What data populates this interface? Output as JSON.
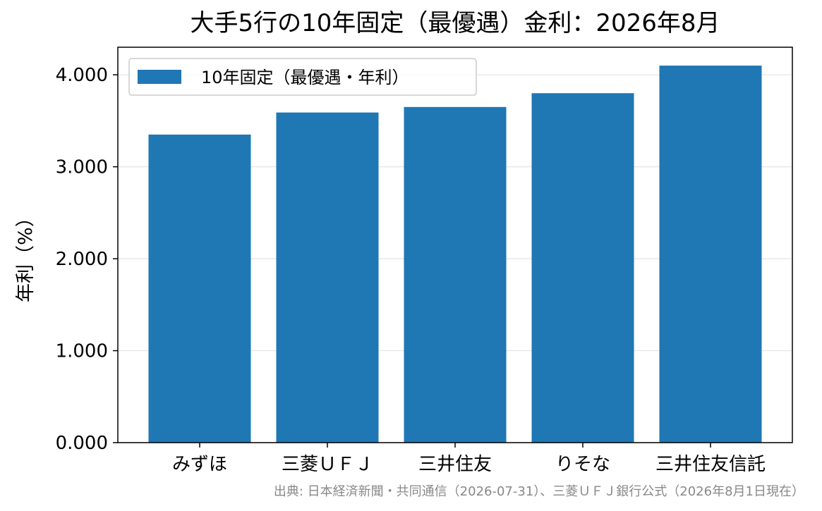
{
  "chart_data": {
    "type": "bar",
    "title": "大手5行の10年固定（最優遇）金利：2026年8月",
    "xlabel": "",
    "ylabel": "年利（%）",
    "categories": [
      "みずほ",
      "三菱ＵＦＪ",
      "三井住友",
      "りそな",
      "三井住友信託"
    ],
    "series": [
      {
        "name": "10年固定（最優遇・年利）",
        "values": [
          3.35,
          3.59,
          3.65,
          3.8,
          4.1
        ],
        "color": "#1f77b4"
      }
    ],
    "ylim": [
      0,
      4.3
    ],
    "yticks": [
      "0.000",
      "1.000",
      "2.000",
      "3.000",
      "4.000"
    ],
    "grid": "y",
    "legend_position": "upper-left",
    "source_note": "出典: 日本経済新聞・共同通信（2026-07-31）、三菱ＵＦＪ銀行公式（2026年8月1日現在）"
  }
}
